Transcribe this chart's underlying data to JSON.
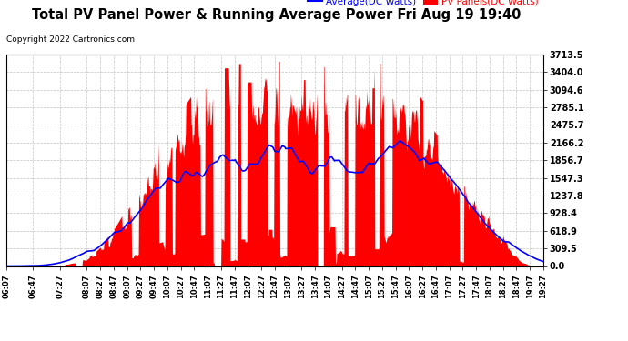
{
  "title": "Total PV Panel Power & Running Average Power Fri Aug 19 19:40",
  "copyright": "Copyright 2022 Cartronics.com",
  "legend_average": "Average(DC Watts)",
  "legend_pv": "PV Panels(DC Watts)",
  "yticks": [
    0.0,
    309.5,
    618.9,
    928.4,
    1237.8,
    1547.3,
    1856.7,
    2166.2,
    2475.7,
    2785.1,
    3094.6,
    3404.0,
    3713.5
  ],
  "ymax": 3713.5,
  "ymin": 0.0,
  "background_color": "#ffffff",
  "grid_color": "#bbbbbb",
  "pv_color": "#ff0000",
  "avg_color": "#0000ff",
  "title_color": "#000000",
  "copyright_color": "#000000",
  "title_fontsize": 10.5,
  "copyright_fontsize": 6.5,
  "legend_fontsize": 7.5,
  "ytick_fontsize": 7,
  "xtick_fontsize": 6,
  "xtick_labels": [
    "06:07",
    "06:47",
    "07:27",
    "08:07",
    "08:27",
    "08:47",
    "09:07",
    "09:27",
    "09:47",
    "10:07",
    "10:27",
    "10:47",
    "11:07",
    "11:27",
    "11:47",
    "12:07",
    "12:27",
    "12:47",
    "13:07",
    "13:27",
    "13:47",
    "14:07",
    "14:27",
    "14:47",
    "15:07",
    "15:27",
    "15:47",
    "16:07",
    "16:27",
    "16:47",
    "17:07",
    "17:27",
    "17:47",
    "18:07",
    "18:27",
    "18:47",
    "19:07",
    "19:27"
  ]
}
